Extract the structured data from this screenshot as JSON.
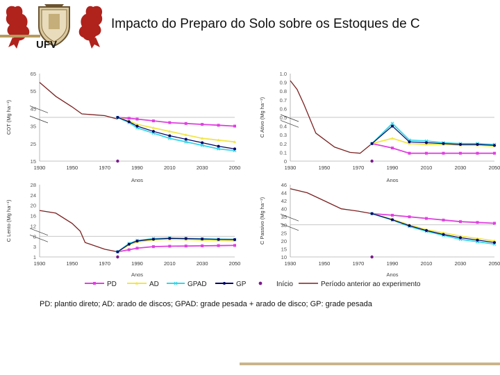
{
  "title": "Impacto do Preparo do Solo sobre os  Estoques de C",
  "logo_text": "UFV",
  "caption": "PD: plantio direto; AD: arado de discos; GPAD: grade pesada + arado de disco; GP: grade pesada",
  "colors": {
    "PD": "#e040e0",
    "AD": "#f2e64a",
    "GPAD": "#33d6e8",
    "GP": "#000066",
    "Inicio": "#7a1a8c",
    "Periodo": "#7a1f1f",
    "grid": "#b3b3b3",
    "gold": "#b79a5d"
  },
  "legend": [
    {
      "key": "PD",
      "label": "PD"
    },
    {
      "key": "AD",
      "label": "AD"
    },
    {
      "key": "GPAD",
      "label": "GPAD"
    },
    {
      "key": "GP",
      "label": "GP"
    },
    {
      "key": "Inicio",
      "label": "Início"
    },
    {
      "key": "Periodo",
      "label": "Período anterior ao experimento"
    }
  ],
  "chart_data": [
    {
      "type": "line",
      "id": "cot",
      "ylabel": "COT (Mg ha⁻¹)",
      "xlabel": "Anos",
      "xlim": [
        1930,
        2050
      ],
      "ylim": [
        15,
        65
      ],
      "xticks": [
        1930,
        1950,
        1970,
        1990,
        2010,
        2030,
        2050
      ],
      "yticks": [
        15,
        25,
        35,
        45,
        55,
        65
      ],
      "yticks_labels": [
        "15",
        "25",
        "35",
        "45",
        "55",
        "65"
      ],
      "hgrid": [
        40
      ],
      "annot_left": [
        45,
        40
      ],
      "historical": {
        "x": [
          1930,
          1940,
          1950,
          1956,
          1970,
          1978
        ],
        "y": [
          60,
          52,
          46,
          42,
          41,
          39
        ]
      },
      "inicio": {
        "x": 1978,
        "y": 15
      },
      "series": [
        {
          "key": "PD",
          "x": [
            1978,
            1985,
            1990,
            2000,
            2010,
            2020,
            2030,
            2040,
            2050
          ],
          "y": [
            40,
            39.5,
            39,
            38,
            37,
            36.5,
            36,
            35.5,
            35
          ]
        },
        {
          "key": "AD",
          "x": [
            1978,
            1985,
            1990,
            2000,
            2010,
            2020,
            2030,
            2040,
            2050
          ],
          "y": [
            40,
            38,
            36,
            34,
            32,
            30,
            28,
            27,
            26
          ]
        },
        {
          "key": "GPAD",
          "x": [
            1978,
            1985,
            1990,
            2000,
            2010,
            2020,
            2030,
            2040,
            2050
          ],
          "y": [
            40,
            37,
            34,
            31,
            28,
            26,
            24,
            22,
            21
          ]
        },
        {
          "key": "GP",
          "x": [
            1978,
            1985,
            1990,
            2000,
            2010,
            2020,
            2030,
            2040,
            2050
          ],
          "y": [
            40,
            37.5,
            35,
            32,
            29.5,
            27.5,
            25.5,
            23.5,
            22
          ]
        }
      ]
    },
    {
      "type": "line",
      "id": "cativo",
      "ylabel": "C Ativo (Mg ha⁻¹)",
      "xlabel": "Anos",
      "xlim": [
        1930,
        2050
      ],
      "ylim": [
        0,
        1.0
      ],
      "xticks": [
        1930,
        1950,
        1970,
        1990,
        2010,
        2030,
        2050
      ],
      "yticks": [
        0,
        0.1,
        0.2,
        0.3,
        0.4,
        0.5,
        0.6,
        0.7,
        0.8,
        0.9,
        1.0
      ],
      "yticks_labels": [
        "0",
        "0.1",
        "0.2",
        "0.3",
        "0.4",
        "0.5",
        "0.6",
        "0.7",
        "0.8",
        "0.9",
        "1.0"
      ],
      "hgrid": [
        0.5
      ],
      "annot_left": [
        0.5,
        0.45
      ],
      "historical": {
        "x": [
          1930,
          1934,
          1938,
          1945,
          1956,
          1965,
          1971,
          1978
        ],
        "y": [
          0.92,
          0.82,
          0.65,
          0.32,
          0.16,
          0.1,
          0.09,
          0.2
        ]
      },
      "inicio": {
        "x": 1978,
        "y": 0
      },
      "series": [
        {
          "key": "PD",
          "x": [
            1978,
            1990,
            2000,
            2010,
            2020,
            2030,
            2040,
            2050
          ],
          "y": [
            0.2,
            0.15,
            0.09,
            0.09,
            0.09,
            0.09,
            0.09,
            0.09
          ]
        },
        {
          "key": "AD",
          "x": [
            1978,
            1990,
            2000,
            2010,
            2020,
            2030,
            2040,
            2050
          ],
          "y": [
            0.2,
            0.26,
            0.2,
            0.19,
            0.19,
            0.18,
            0.18,
            0.17
          ]
        },
        {
          "key": "GPAD",
          "x": [
            1978,
            1990,
            2000,
            2010,
            2020,
            2030,
            2040,
            2050
          ],
          "y": [
            0.2,
            0.43,
            0.24,
            0.23,
            0.21,
            0.2,
            0.2,
            0.19
          ]
        },
        {
          "key": "GP",
          "x": [
            1978,
            1990,
            2000,
            2010,
            2020,
            2030,
            2040,
            2050
          ],
          "y": [
            0.2,
            0.4,
            0.22,
            0.21,
            0.2,
            0.19,
            0.19,
            0.18
          ]
        }
      ]
    },
    {
      "type": "line",
      "id": "clento",
      "ylabel": "C Lento (Mg ha⁻¹)",
      "xlabel": "Anos",
      "xlim": [
        1930,
        2050
      ],
      "ylim": [
        1,
        28
      ],
      "xticks": [
        1930,
        1950,
        1970,
        1990,
        2010,
        2030,
        2050
      ],
      "yticks": [
        1,
        3,
        8,
        12,
        16,
        20,
        24,
        28
      ],
      "yticks_labels": [
        "1",
        "3",
        "8",
        "12",
        "16",
        "20",
        "24",
        "28"
      ],
      "hgrid": [
        8
      ],
      "annot_left": [
        10,
        8
      ],
      "historical": {
        "x": [
          1930,
          1940,
          1950,
          1955,
          1958,
          1970,
          1978
        ],
        "y": [
          18,
          17,
          13,
          10,
          5,
          2.5,
          2
        ]
      },
      "inicio": {
        "x": 1978,
        "y": 1
      },
      "series": [
        {
          "key": "PD",
          "x": [
            1978,
            1985,
            1990,
            2000,
            2010,
            2020,
            2030,
            2040,
            2050
          ],
          "y": [
            2,
            2.4,
            2.7,
            3.0,
            3.2,
            3.3,
            3.4,
            3.5,
            3.6
          ]
        },
        {
          "key": "AD",
          "x": [
            1978,
            1985,
            1990,
            2000,
            2010,
            2020,
            2030,
            2040,
            2050
          ],
          "y": [
            2,
            3.8,
            5.2,
            6.2,
            6.5,
            6.4,
            6.1,
            5.9,
            5.8
          ]
        },
        {
          "key": "GPAD",
          "x": [
            1978,
            1985,
            1990,
            2000,
            2010,
            2020,
            2030,
            2040,
            2050
          ],
          "y": [
            2,
            4.5,
            6.0,
            6.9,
            7.2,
            7.0,
            6.8,
            6.6,
            6.5
          ]
        },
        {
          "key": "GP",
          "x": [
            1978,
            1985,
            1990,
            2000,
            2010,
            2020,
            2030,
            2040,
            2050
          ],
          "y": [
            2,
            4.2,
            5.7,
            6.6,
            7.0,
            6.9,
            6.7,
            6.5,
            6.4
          ]
        }
      ]
    },
    {
      "type": "line",
      "id": "cpassivo",
      "ylabel": "C Passivo (Mg ha⁻¹)",
      "xlabel": "Anos",
      "xlim": [
        1930,
        2050
      ],
      "ylim": [
        10,
        46
      ],
      "xticks": [
        1930,
        1950,
        1970,
        1990,
        2010,
        2030,
        2050
      ],
      "yticks": [
        10,
        15,
        20,
        25,
        30,
        35,
        40,
        42,
        44,
        46
      ],
      "yticks_labels": [
        "10",
        "15",
        "20",
        "25",
        "30",
        "35",
        "40",
        "42",
        "44",
        "46"
      ],
      "hgrid": [
        30
      ],
      "annot_left": [
        35,
        30
      ],
      "historical": {
        "x": [
          1930,
          1940,
          1950,
          1960,
          1970,
          1978
        ],
        "y": [
          45,
          44,
          42,
          40,
          38.5,
          37
        ]
      },
      "inicio": {
        "x": 1978,
        "y": 10
      },
      "series": [
        {
          "key": "PD",
          "x": [
            1978,
            1990,
            2000,
            2010,
            2020,
            2030,
            2040,
            2050
          ],
          "y": [
            37,
            36,
            35,
            34,
            33,
            32,
            31.5,
            31
          ]
        },
        {
          "key": "AD",
          "x": [
            1978,
            1990,
            2000,
            2010,
            2020,
            2030,
            2040,
            2050
          ],
          "y": [
            37,
            33.5,
            30,
            27,
            25,
            23,
            21.5,
            20
          ]
        },
        {
          "key": "GPAD",
          "x": [
            1978,
            1990,
            2000,
            2010,
            2020,
            2030,
            2040,
            2050
          ],
          "y": [
            37,
            33,
            29,
            26,
            23.5,
            21,
            19.5,
            18
          ]
        },
        {
          "key": "GP",
          "x": [
            1978,
            1990,
            2000,
            2010,
            2020,
            2030,
            2040,
            2050
          ],
          "y": [
            37,
            33.2,
            29.5,
            26.5,
            24,
            22,
            20.5,
            19
          ]
        }
      ]
    }
  ]
}
